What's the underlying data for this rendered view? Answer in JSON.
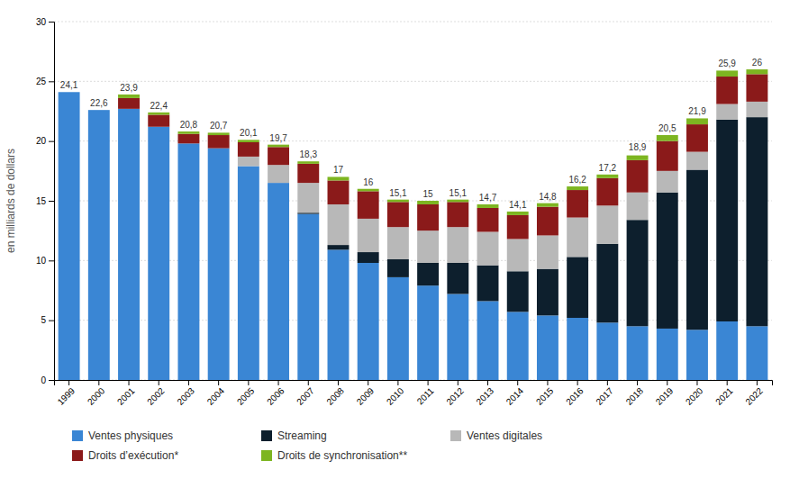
{
  "chart_data": {
    "type": "bar",
    "stacked": true,
    "categories": [
      "1999",
      "2000",
      "2001",
      "2002",
      "2003",
      "2004",
      "2005",
      "2006",
      "2007",
      "2008",
      "2009",
      "2010",
      "2011",
      "2012",
      "2013",
      "2014",
      "2015",
      "2016",
      "2017",
      "2018",
      "2019",
      "2020",
      "2021",
      "2022"
    ],
    "series": [
      {
        "name": "Ventes physiques",
        "color": "#3a86d4",
        "values": [
          24.1,
          22.6,
          22.7,
          21.2,
          19.8,
          19.4,
          17.9,
          16.5,
          13.9,
          10.9,
          9.8,
          8.6,
          7.9,
          7.2,
          6.6,
          5.7,
          5.4,
          5.2,
          4.8,
          4.5,
          4.3,
          4.2,
          4.9,
          4.5
        ]
      },
      {
        "name": "Streaming",
        "color": "#0d1f2d",
        "values": [
          0.0,
          0.0,
          0.0,
          0.0,
          0.0,
          0.0,
          0.0,
          0.0,
          0.1,
          0.4,
          0.9,
          1.5,
          1.9,
          2.6,
          3.0,
          3.4,
          3.9,
          5.1,
          6.6,
          8.9,
          11.4,
          13.4,
          16.9,
          17.5
        ]
      },
      {
        "name": "Ventes digitales",
        "color": "#b8b8b8",
        "values": [
          0.0,
          0.0,
          0.0,
          0.0,
          0.0,
          0.0,
          0.8,
          1.5,
          2.5,
          3.4,
          2.8,
          2.7,
          2.7,
          3.0,
          2.8,
          2.7,
          2.8,
          3.3,
          3.2,
          2.3,
          1.8,
          1.5,
          1.3,
          1.3
        ]
      },
      {
        "name": "Droits d’exécution*",
        "color": "#8b1a1a",
        "values": [
          0.0,
          0.0,
          0.9,
          1.0,
          0.8,
          1.1,
          1.2,
          1.5,
          1.6,
          2.0,
          2.3,
          2.1,
          2.2,
          2.1,
          2.0,
          2.0,
          2.4,
          2.3,
          2.3,
          2.7,
          2.5,
          2.3,
          2.3,
          2.3
        ]
      },
      {
        "name": "Droits de synchronisation**",
        "color": "#7db521",
        "values": [
          0.0,
          0.0,
          0.3,
          0.2,
          0.2,
          0.2,
          0.2,
          0.2,
          0.2,
          0.3,
          0.2,
          0.2,
          0.3,
          0.2,
          0.3,
          0.3,
          0.3,
          0.3,
          0.3,
          0.4,
          0.5,
          0.5,
          0.5,
          0.4
        ]
      }
    ],
    "totals": {
      "values": [
        24.1,
        22.6,
        23.9,
        22.4,
        20.8,
        20.7,
        20.1,
        19.7,
        18.3,
        17,
        16,
        15.1,
        15,
        15.1,
        14.7,
        14.1,
        14.8,
        16.2,
        17.2,
        18.9,
        20.5,
        21.9,
        25.9,
        26
      ],
      "value_labels": [
        "24,1",
        "22,6",
        "23,9",
        "22,4",
        "20,8",
        "20,7",
        "20,1",
        "19,7",
        "18,3",
        "17",
        "16",
        "15,1",
        "15",
        "15,1",
        "14,7",
        "14,1",
        "14,8",
        "16,2",
        "17,2",
        "18,9",
        "20,5",
        "21,9",
        "25,9",
        "26"
      ]
    },
    "ylabel": "en milliards de dollars",
    "ylim": [
      0,
      30
    ],
    "yticks": [
      0,
      5,
      10,
      15,
      20,
      25,
      30
    ],
    "grid": true,
    "legend": "bottom"
  }
}
